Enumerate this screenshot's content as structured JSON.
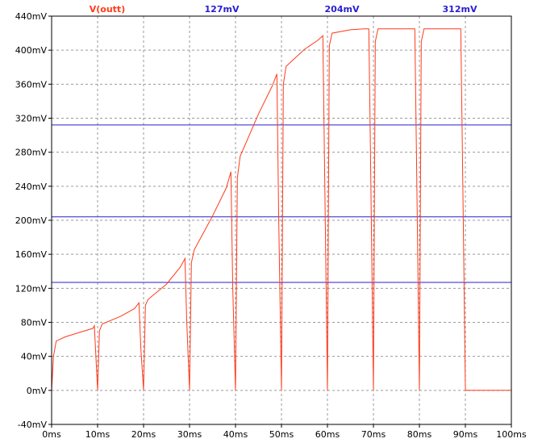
{
  "chart_data": {
    "type": "line",
    "xlim": [
      0,
      100
    ],
    "ylim": [
      -40,
      440
    ],
    "x_tick_labels": [
      "0ms",
      "10ms",
      "20ms",
      "30ms",
      "40ms",
      "50ms",
      "60ms",
      "70ms",
      "80ms",
      "90ms",
      "100ms"
    ],
    "y_tick_labels": [
      "440mV",
      "400mV",
      "360mV",
      "320mV",
      "280mV",
      "240mV",
      "200mV",
      "160mV",
      "120mV",
      "80mV",
      "40mV",
      "0mV",
      "-40mV"
    ],
    "grid": true,
    "legend_labels": [
      "V(outt)",
      "127mV",
      "204mV",
      "312mV"
    ],
    "colors": {
      "trace": "#ff3a1a",
      "reference": "#2a1ed0",
      "grid": "#9a9a9a",
      "frame": "#000000"
    },
    "series": [
      {
        "name": "V(outt)",
        "x": [
          0,
          0.4,
          1,
          3,
          6,
          9,
          9.3,
          10,
          10.4,
          11,
          15,
          18,
          19,
          19.4,
          20,
          20.4,
          21,
          25,
          28,
          29,
          29.4,
          30,
          30.4,
          31,
          35,
          38,
          39,
          39.4,
          40,
          40.4,
          41,
          45,
          48,
          49,
          49.4,
          50,
          50.4,
          51,
          55,
          58,
          59,
          59.4,
          60,
          60.4,
          61,
          65,
          68,
          69,
          69.4,
          70,
          70.4,
          71,
          75,
          78,
          79,
          79.4,
          80,
          80.4,
          81,
          85,
          88,
          89,
          89.4,
          90,
          100
        ],
        "y": [
          0,
          40,
          58,
          63,
          68,
          73,
          76,
          0,
          70,
          78,
          87,
          96,
          103,
          50,
          0,
          100,
          107,
          125,
          145,
          155,
          80,
          0,
          150,
          165,
          205,
          238,
          257,
          120,
          0,
          250,
          275,
          325,
          358,
          372,
          200,
          0,
          360,
          381,
          401,
          412,
          417,
          250,
          0,
          405,
          420,
          424,
          425,
          425,
          260,
          0,
          410,
          425,
          425,
          425,
          425,
          260,
          0,
          410,
          425,
          425,
          425,
          425,
          260,
          0,
          0
        ]
      },
      {
        "name": "127mV",
        "x": [
          0,
          100
        ],
        "y": [
          127,
          127
        ]
      },
      {
        "name": "204mV",
        "x": [
          0,
          100
        ],
        "y": [
          204,
          204
        ]
      },
      {
        "name": "312mV",
        "x": [
          0,
          100
        ],
        "y": [
          312,
          312
        ]
      }
    ]
  }
}
